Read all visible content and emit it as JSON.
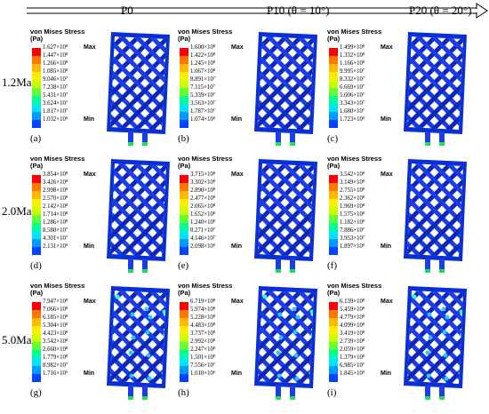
{
  "columns": [
    "P0",
    "P10 (θ = 10°)",
    "P20 (θ = 20°)"
  ],
  "rows": [
    "1.2Ma",
    "2.0Ma",
    "5.0Ma"
  ],
  "legend_title": "von Mises Stress",
  "legend_unit": "(Pa)",
  "max_tag": "Max",
  "min_tag": "Min",
  "colormap": [
    "#ff0000",
    "#ff7700",
    "#ffbb00",
    "#ffee00",
    "#ccff00",
    "#66ff33",
    "#00ff99",
    "#00e5ff",
    "#0099ff",
    "#0044ff",
    "#0000ff"
  ],
  "panels": [
    {
      "tag": "(a)",
      "values": [
        "1.627×10⁸",
        "1.447×10⁸",
        "1.266×10⁸",
        "1.085×10⁸",
        "9.046×10⁷",
        "7.238×10⁷",
        "5.431×10⁷",
        "3.624×10⁷",
        "1.817×10⁷",
        "1.032×10⁵"
      ],
      "intensity": "low"
    },
    {
      "tag": "(b)",
      "values": [
        "1.600×10⁸",
        "1.422×10⁸",
        "1.245×10⁸",
        "1.067×10⁸",
        "8.891×10⁷",
        "7.115×10⁷",
        "5.339×10⁷",
        "3.563×10⁷",
        "1.787×10⁷",
        "1.074×10⁵"
      ],
      "intensity": "low"
    },
    {
      "tag": "(c)",
      "values": [
        "1.499×10⁸",
        "1.332×10⁸",
        "1.166×10⁸",
        "9.995×10⁷",
        "8.332×10⁷",
        "6.669×10⁷",
        "5.006×10⁷",
        "3.343×10⁷",
        "1.680×10⁷",
        "1.723×10⁵"
      ],
      "intensity": "low"
    },
    {
      "tag": "(d)",
      "values": [
        "3.854×10⁸",
        "3.426×10⁸",
        "2.998×10⁸",
        "2.570×10⁸",
        "2.142×10⁸",
        "1.714×10⁸",
        "1.286×10⁸",
        "8.580×10⁷",
        "4.301×10⁷",
        "2.131×10⁵"
      ],
      "intensity": "low"
    },
    {
      "tag": "(e)",
      "values": [
        "3.715×10⁸",
        "3.302×10⁸",
        "2.890×10⁸",
        "2.477×10⁸",
        "2.065×10⁸",
        "1.652×10⁸",
        "1.240×10⁸",
        "8.271×10⁷",
        "4.146×10⁷",
        "2.098×10⁵"
      ],
      "intensity": "low"
    },
    {
      "tag": "(f)",
      "values": [
        "3.542×10⁸",
        "3.149×10⁸",
        "2.755×10⁸",
        "2.362×10⁸",
        "1.969×10⁸",
        "1.575×10⁸",
        "1.182×10⁸",
        "7.886×10⁷",
        "3.953×10⁷",
        "1.897×10⁵"
      ],
      "intensity": "low"
    },
    {
      "tag": "(g)",
      "values": [
        "7.947×10⁸",
        "7.066×10⁸",
        "6.185×10⁸",
        "5.304×10⁸",
        "4.423×10⁸",
        "3.542×10⁸",
        "2.660×10⁸",
        "1.779×10⁸",
        "8.982×10⁷",
        "1.716×10⁵"
      ],
      "intensity": "high"
    },
    {
      "tag": "(h)",
      "values": [
        "6.719×10⁸",
        "5.974×10⁸",
        "5.228×10⁸",
        "4.483×10⁸",
        "3.737×10⁸",
        "2.992×10⁸",
        "2.247×10⁸",
        "1.501×10⁸",
        "7.556×10⁷",
        "1.010×10⁶"
      ],
      "intensity": "high"
    },
    {
      "tag": "(i)",
      "values": [
        "6.139×10⁸",
        "5.459×10⁸",
        "4.779×10⁸",
        "4.099×10⁸",
        "3.419×10⁸",
        "2.739×10⁸",
        "2.059×10⁸",
        "1.379×10⁸",
        "6.985×10⁷",
        "1.845×10⁵"
      ],
      "intensity": "high"
    }
  ]
}
